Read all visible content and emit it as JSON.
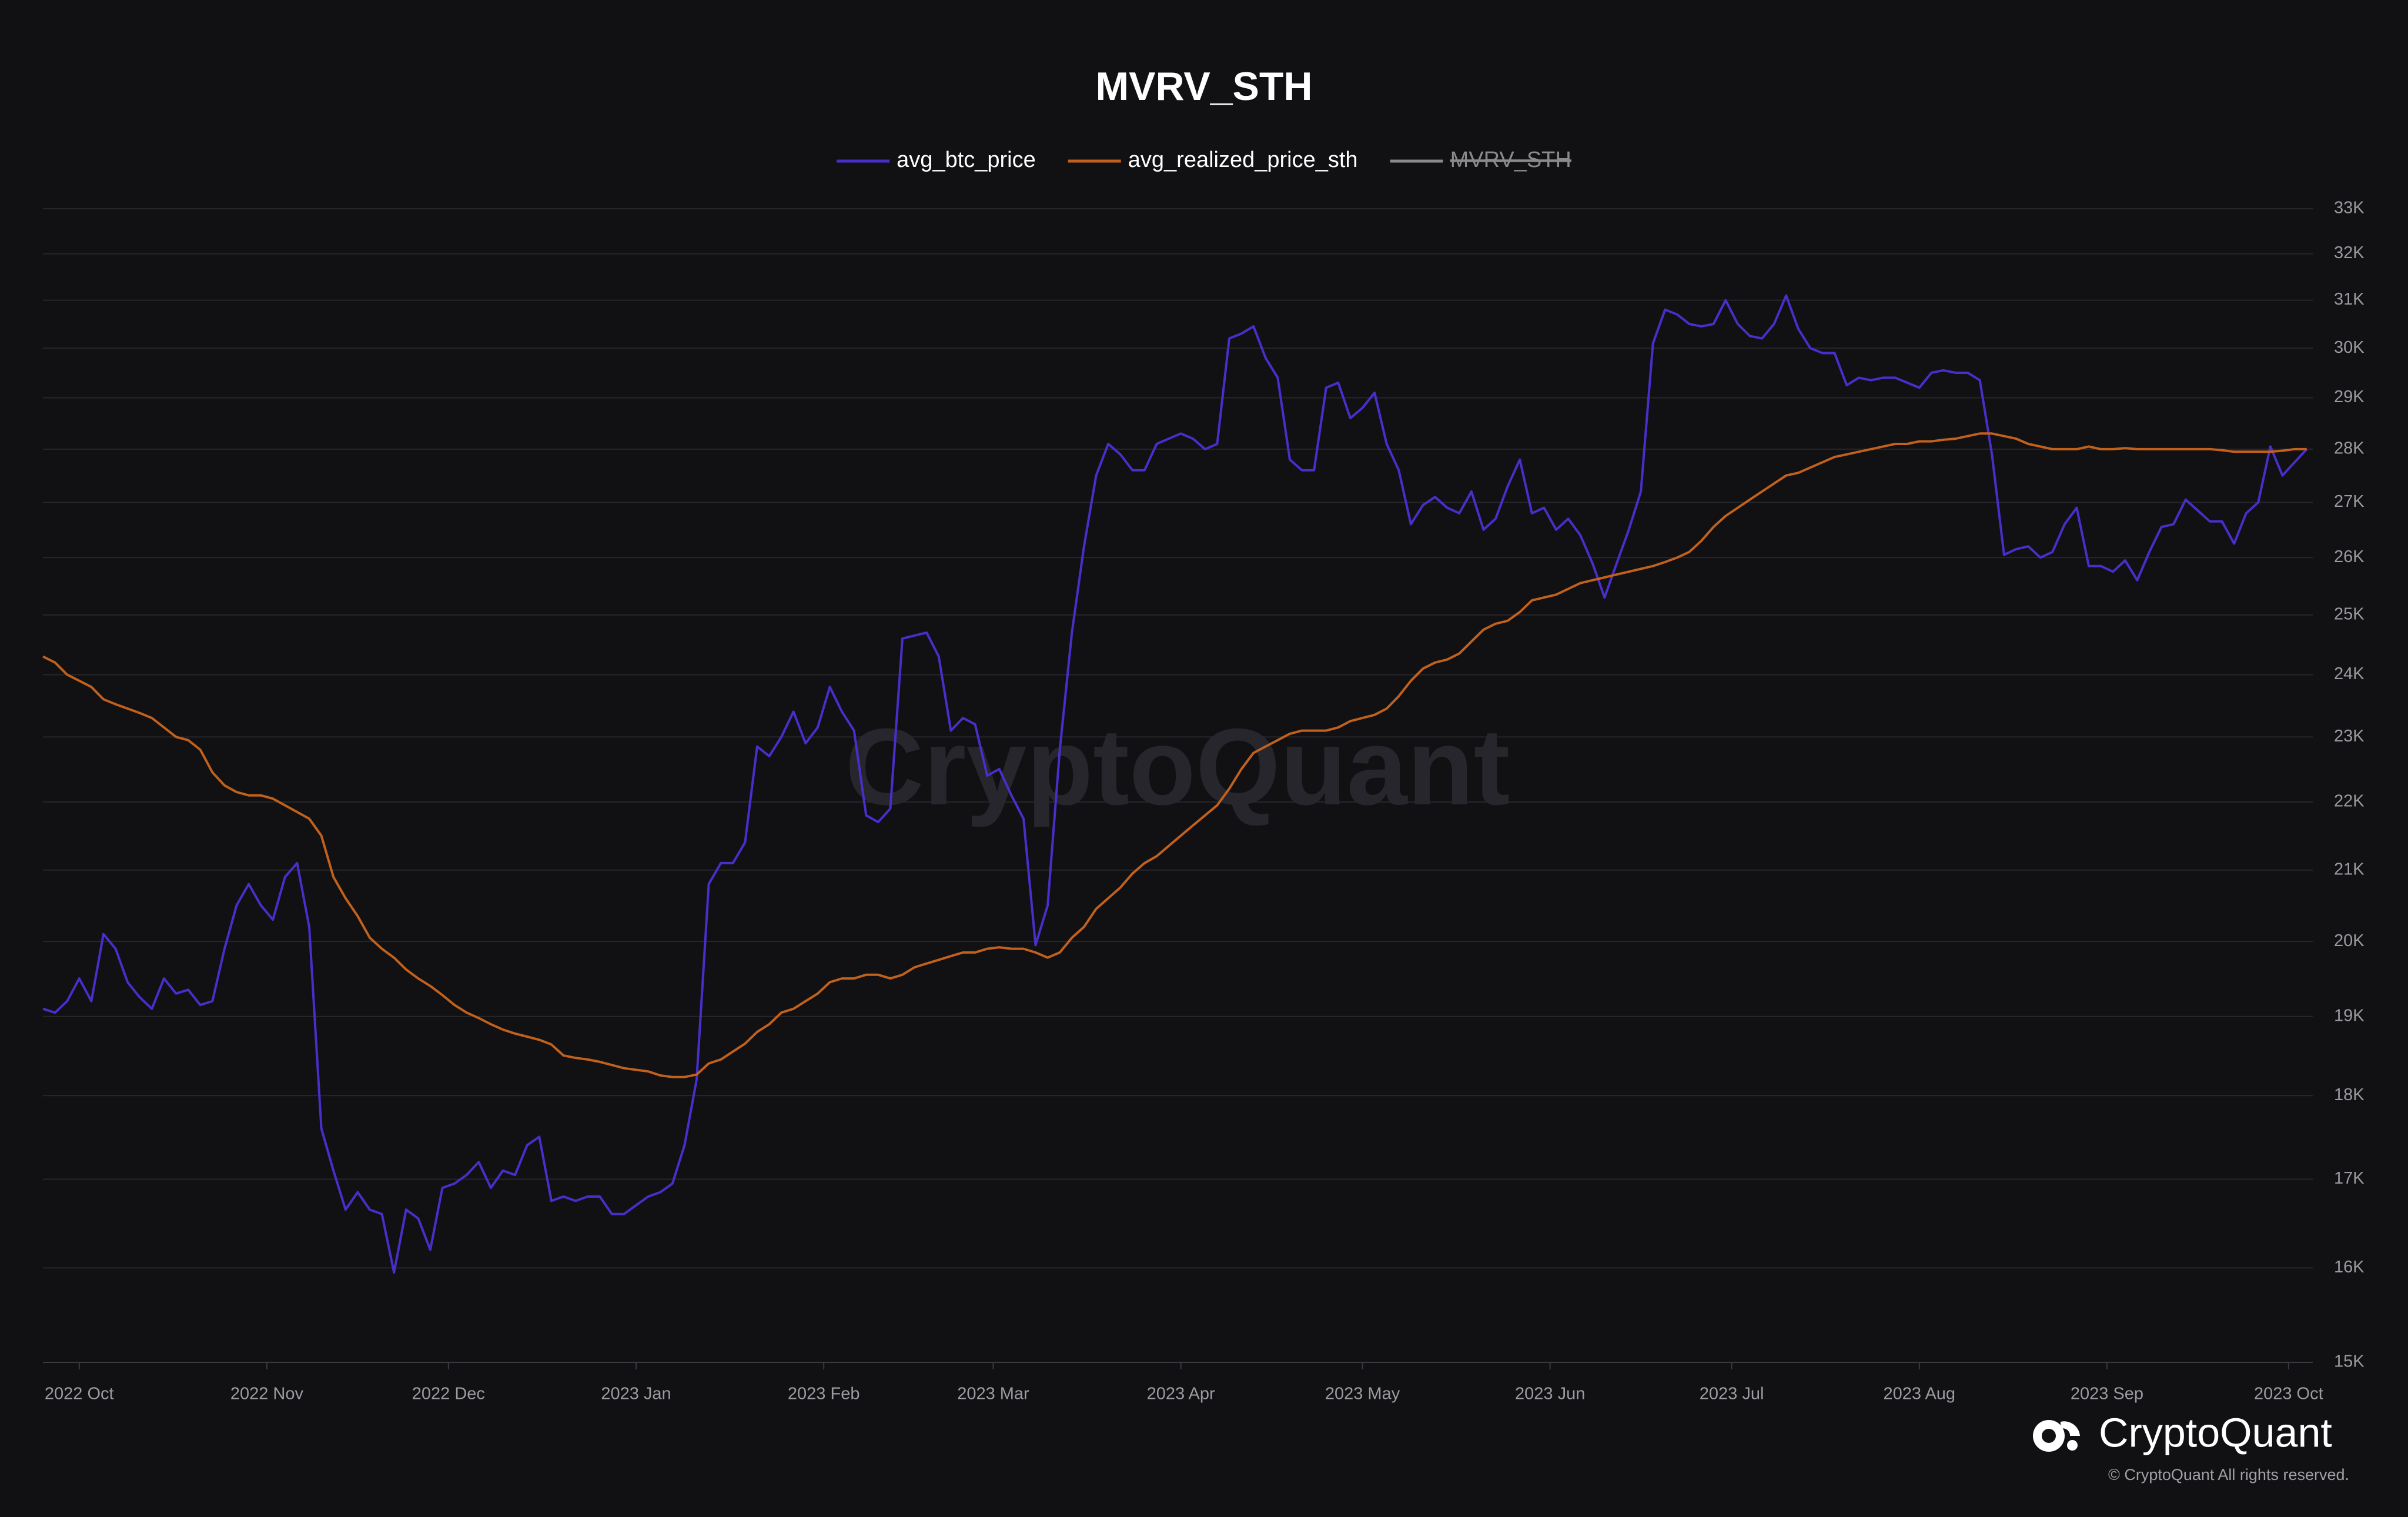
{
  "chart_data": {
    "type": "line",
    "title": "MVRV_STH",
    "watermark": "CryptoQuant",
    "brand": "CryptoQuant",
    "copyright": "© CryptoQuant All rights reserved.",
    "yscale": "log",
    "grid": true,
    "ylim": [
      15000,
      33000
    ],
    "yticks": [
      {
        "value": 15000,
        "label": "15K"
      },
      {
        "value": 16000,
        "label": "16K"
      },
      {
        "value": 17000,
        "label": "17K"
      },
      {
        "value": 18000,
        "label": "18K"
      },
      {
        "value": 19000,
        "label": "19K"
      },
      {
        "value": 20000,
        "label": "20K"
      },
      {
        "value": 21000,
        "label": "21K"
      },
      {
        "value": 22000,
        "label": "22K"
      },
      {
        "value": 23000,
        "label": "23K"
      },
      {
        "value": 24000,
        "label": "24K"
      },
      {
        "value": 25000,
        "label": "25K"
      },
      {
        "value": 26000,
        "label": "26K"
      },
      {
        "value": 27000,
        "label": "27K"
      },
      {
        "value": 28000,
        "label": "28K"
      },
      {
        "value": 29000,
        "label": "29K"
      },
      {
        "value": 30000,
        "label": "30K"
      },
      {
        "value": 31000,
        "label": "31K"
      },
      {
        "value": 32000,
        "label": "32K"
      },
      {
        "value": 33000,
        "label": "33K"
      }
    ],
    "xlim": [
      0,
      375
    ],
    "xticks": [
      {
        "value": 6,
        "label": "2022 Oct"
      },
      {
        "value": 37,
        "label": "2022 Nov"
      },
      {
        "value": 67,
        "label": "2022 Dec"
      },
      {
        "value": 98,
        "label": "2023 Jan"
      },
      {
        "value": 129,
        "label": "2023 Feb"
      },
      {
        "value": 157,
        "label": "2023 Mar"
      },
      {
        "value": 188,
        "label": "2023 Apr"
      },
      {
        "value": 218,
        "label": "2023 May"
      },
      {
        "value": 249,
        "label": "2023 Jun"
      },
      {
        "value": 279,
        "label": "2023 Jul"
      },
      {
        "value": 310,
        "label": "2023 Aug"
      },
      {
        "value": 341,
        "label": "2023 Sep"
      },
      {
        "value": 371,
        "label": "2023 Oct"
      }
    ],
    "x": [
      0,
      2,
      4,
      6,
      8,
      10,
      12,
      14,
      16,
      18,
      20,
      22,
      24,
      26,
      28,
      30,
      32,
      34,
      36,
      38,
      40,
      42,
      44,
      46,
      48,
      50,
      52,
      54,
      56,
      58,
      60,
      62,
      64,
      66,
      68,
      70,
      72,
      74,
      76,
      78,
      80,
      82,
      84,
      86,
      88,
      90,
      92,
      94,
      96,
      98,
      100,
      102,
      104,
      106,
      108,
      110,
      112,
      114,
      116,
      118,
      120,
      122,
      124,
      126,
      128,
      130,
      132,
      134,
      136,
      138,
      140,
      142,
      144,
      146,
      148,
      150,
      152,
      154,
      156,
      158,
      160,
      162,
      164,
      166,
      168,
      170,
      172,
      174,
      176,
      178,
      180,
      182,
      184,
      186,
      188,
      190,
      192,
      194,
      196,
      198,
      200,
      202,
      204,
      206,
      208,
      210,
      212,
      214,
      216,
      218,
      220,
      222,
      224,
      226,
      228,
      230,
      232,
      234,
      236,
      238,
      240,
      242,
      244,
      246,
      248,
      250,
      252,
      254,
      256,
      258,
      260,
      262,
      264,
      266,
      268,
      270,
      272,
      274,
      276,
      278,
      280,
      282,
      284,
      286,
      288,
      290,
      292,
      294,
      296,
      298,
      300,
      302,
      304,
      306,
      308,
      310,
      312,
      314,
      316,
      318,
      320,
      322,
      324,
      326,
      328,
      330,
      332,
      334,
      336,
      338,
      340,
      342,
      344,
      346,
      348,
      350,
      352,
      354,
      356,
      358,
      360,
      362,
      364,
      366,
      368,
      370,
      372,
      374
    ],
    "series": [
      {
        "name": "avg_btc_price",
        "color": "#4a2ecb",
        "visible": true,
        "values": [
          19100,
          19050,
          19200,
          19500,
          19200,
          20100,
          19900,
          19450,
          19250,
          19100,
          19500,
          19300,
          19350,
          19150,
          19200,
          19900,
          20500,
          20800,
          20500,
          20300,
          20900,
          21100,
          20200,
          17600,
          17100,
          16650,
          16850,
          16650,
          16600,
          15950,
          16650,
          16550,
          16200,
          16900,
          16950,
          17050,
          17200,
          16900,
          17100,
          17050,
          17400,
          17500,
          16750,
          16800,
          16750,
          16800,
          16800,
          16600,
          16600,
          16700,
          16800,
          16850,
          16950,
          17400,
          18200,
          20800,
          21100,
          21100,
          21400,
          22850,
          22700,
          23000,
          23400,
          22900,
          23150,
          23800,
          23400,
          23100,
          21800,
          21700,
          21900,
          24600,
          24650,
          24700,
          24300,
          23100,
          23300,
          23200,
          22400,
          22500,
          22100,
          21750,
          19950,
          20500,
          22800,
          24700,
          26200,
          27500,
          28100,
          27900,
          27600,
          27600,
          28100,
          28200,
          28300,
          28200,
          28000,
          28100,
          30200,
          30300,
          30450,
          29800,
          29400,
          27800,
          27600,
          27600,
          29200,
          29300,
          28600,
          28800,
          29100,
          28100,
          27600,
          26600,
          26950,
          27100,
          26900,
          26800,
          27200,
          26500,
          26700,
          27300,
          27800,
          26800,
          26900,
          26500,
          26700,
          26400,
          25900,
          25300,
          25900,
          26500,
          27200,
          30100,
          30800,
          30700,
          30500,
          30450,
          30500,
          31000,
          30500,
          30250,
          30200,
          30500,
          31100,
          30400,
          30000,
          29900,
          29900,
          29250,
          29400,
          29350,
          29400,
          29400,
          29300,
          29200,
          29500,
          29550,
          29500,
          29500,
          29350,
          27900,
          26050,
          26150,
          26200,
          26000,
          26100,
          26600,
          26900,
          25850,
          25850,
          25750,
          25950,
          25600,
          26100,
          26550,
          26600,
          27050,
          26850,
          26650,
          26650,
          26250,
          26800,
          27000,
          28050,
          27500,
          27750,
          28000
        ]
      },
      {
        "name": "avg_realized_price_sth",
        "color": "#c2611c",
        "visible": true,
        "values": [
          24300,
          24200,
          24000,
          23900,
          23800,
          23600,
          23520,
          23450,
          23380,
          23300,
          23150,
          23000,
          22950,
          22800,
          22450,
          22250,
          22150,
          22100,
          22100,
          22050,
          21950,
          21850,
          21750,
          21500,
          20900,
          20600,
          20350,
          20050,
          19900,
          19780,
          19620,
          19500,
          19400,
          19280,
          19150,
          19050,
          18980,
          18900,
          18830,
          18780,
          18740,
          18700,
          18640,
          18500,
          18470,
          18450,
          18420,
          18380,
          18340,
          18320,
          18300,
          18250,
          18230,
          18230,
          18260,
          18400,
          18450,
          18550,
          18650,
          18800,
          18900,
          19050,
          19100,
          19200,
          19300,
          19450,
          19500,
          19500,
          19550,
          19550,
          19500,
          19550,
          19650,
          19700,
          19750,
          19800,
          19850,
          19850,
          19900,
          19920,
          19900,
          19900,
          19850,
          19780,
          19850,
          20050,
          20200,
          20450,
          20600,
          20750,
          20950,
          21100,
          21200,
          21350,
          21500,
          21650,
          21800,
          21950,
          22200,
          22500,
          22750,
          22850,
          22950,
          23050,
          23100,
          23100,
          23100,
          23150,
          23250,
          23300,
          23350,
          23450,
          23650,
          23900,
          24100,
          24200,
          24250,
          24350,
          24550,
          24750,
          24850,
          24900,
          25050,
          25250,
          25300,
          25350,
          25450,
          25550,
          25600,
          25650,
          25700,
          25750,
          25800,
          25850,
          25920,
          26000,
          26100,
          26300,
          26550,
          26750,
          26900,
          27050,
          27200,
          27350,
          27500,
          27550,
          27650,
          27750,
          27850,
          27900,
          27950,
          28000,
          28050,
          28100,
          28100,
          28150,
          28150,
          28180,
          28200,
          28250,
          28300,
          28300,
          28250,
          28200,
          28100,
          28050,
          28000,
          28000,
          28000,
          28050,
          28000,
          28000,
          28020,
          28000,
          28000,
          28000,
          28000,
          28000,
          28000,
          28000,
          27980,
          27950,
          27950,
          27950,
          27950,
          27970,
          28000,
          28000
        ]
      },
      {
        "name": "MVRV_STH",
        "color": "#8a8a8a",
        "visible": false
      }
    ]
  }
}
